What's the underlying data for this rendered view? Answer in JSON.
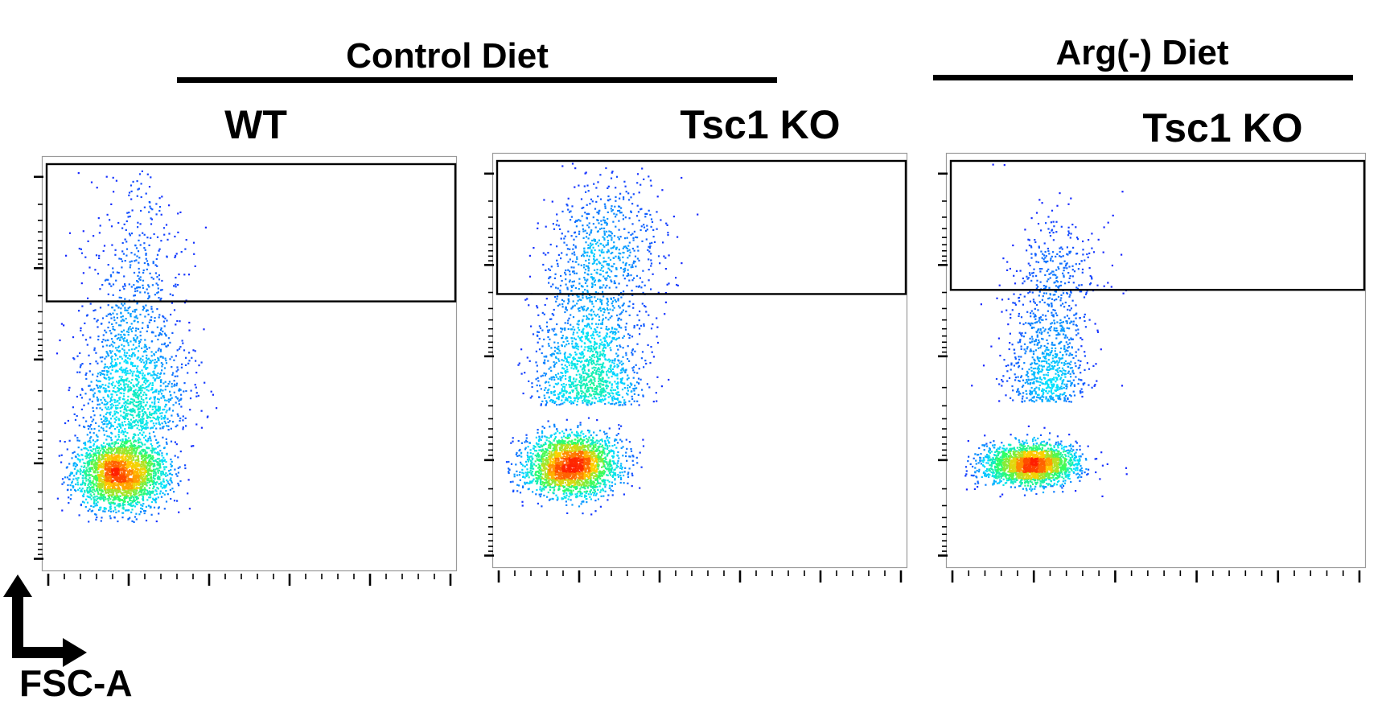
{
  "groups": [
    {
      "label": "Control Diet"
    },
    {
      "label": "Arg(-) Diet"
    }
  ],
  "axis": {
    "x_label": "FSC-A"
  },
  "colors": {
    "density_low": "#1a1aff",
    "density_mid": "#00e0ff",
    "density_mid2": "#30ff60",
    "density_high": "#ffd000",
    "density_peak": "#ff2000",
    "gate": "#000000"
  },
  "chart_data": [
    {
      "type": "scatter",
      "subtype": "flow-cytometry density dot plot",
      "title": "WT",
      "group": "Control Diet",
      "xlabel": "FSC-A",
      "ylabel": "",
      "xlim": [
        0,
        100
      ],
      "ylim": [
        0,
        100
      ],
      "gate": {
        "x": [
          0,
          100
        ],
        "y": [
          65,
          100
        ]
      },
      "populations": [
        {
          "cx": 19,
          "cy": 24,
          "sx": 5.5,
          "sy": 4.5,
          "n": 2600,
          "role": "core"
        },
        {
          "cx": 22,
          "cy": 40,
          "sx": 6.5,
          "sy": 14,
          "n": 1300,
          "role": "upper-tail"
        },
        {
          "cx": 23,
          "cy": 78,
          "sx": 6,
          "sy": 12,
          "n": 220,
          "role": "gated"
        }
      ]
    },
    {
      "type": "scatter",
      "subtype": "flow-cytometry density dot plot",
      "title": "Tsc1 KO",
      "group": "Control Diet",
      "xlabel": "FSC-A",
      "ylabel": "",
      "xlim": [
        0,
        100
      ],
      "ylim": [
        0,
        100
      ],
      "gate": {
        "x": [
          0,
          100
        ],
        "y": [
          66,
          100
        ]
      },
      "populations": [
        {
          "cx": 19,
          "cy": 25,
          "sx": 5.5,
          "sy": 3.8,
          "n": 2400,
          "role": "core"
        },
        {
          "cx": 23,
          "cy": 45,
          "sx": 6.5,
          "sy": 14,
          "n": 1400,
          "role": "upper-tail"
        },
        {
          "cx": 28,
          "cy": 78,
          "sx": 6.5,
          "sy": 9,
          "n": 520,
          "role": "gated"
        }
      ]
    },
    {
      "type": "scatter",
      "subtype": "flow-cytometry density dot plot",
      "title": "Tsc1 KO",
      "group": "Arg(-) Diet",
      "xlabel": "FSC-A",
      "ylabel": "",
      "xlim": [
        0,
        100
      ],
      "ylim": [
        0,
        100
      ],
      "gate": {
        "x": [
          0,
          100
        ],
        "y": [
          67,
          100
        ]
      },
      "populations": [
        {
          "cx": 20,
          "cy": 25,
          "sx": 5.8,
          "sy": 2.4,
          "n": 2200,
          "role": "core"
        },
        {
          "cx": 24,
          "cy": 45,
          "sx": 5,
          "sy": 12,
          "n": 800,
          "role": "upper-tail"
        },
        {
          "cx": 27,
          "cy": 73,
          "sx": 6,
          "sy": 7,
          "n": 230,
          "role": "gated"
        }
      ]
    }
  ]
}
